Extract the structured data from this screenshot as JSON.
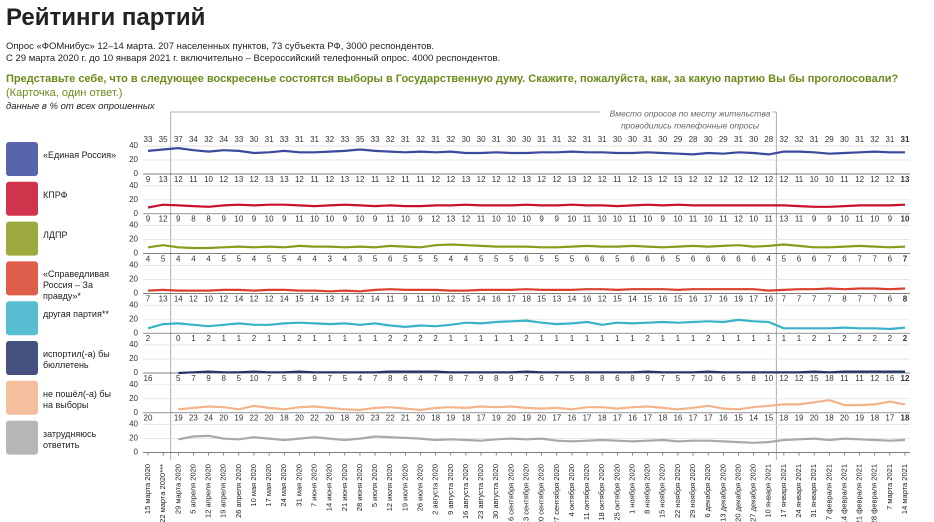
{
  "chart_data": {
    "type": "line",
    "title": "Рейтинги партий",
    "subtitle": [
      "Опрос «ФОМнибус» 12–14 марта. 207 населенных пунктов, 73 субъекта РФ, 3000 респондентов.",
      "С 29 марта 2020 г. до 10 января 2021 г. включительно – Всероссийский телефонный опрос. 4000 респондентов."
    ],
    "question": "Представьте себе, что в следующее воскресенье состоятся выборы в Государственную думу. Скажите, пожалуйста, как, за какую партию Вы бы проголосовали?",
    "note": "(Карточка, один ответ.)",
    "units": "данные в % от всех опрошенных",
    "annotation": [
      "Вместо опросов по месту жительства",
      "проводились телефонные опросы"
    ],
    "categories": [
      "15 марта 2020",
      "22 марта 2020***",
      "29 марта 2020",
      "5 апреля 2020",
      "12 апреля 2020",
      "19 апреля 2020",
      "26 апреля 2020",
      "10 мая 2020",
      "17 мая 2020",
      "24 мая 2020",
      "31 мая 2020",
      "7 июня 2020",
      "14 июня 2020",
      "21 июня 2020",
      "28 июня 2020",
      "5 июля 2020",
      "12 июля 2020",
      "19 июля 2020",
      "26 июля 2020",
      "2 августа 2020",
      "9 августа 2020",
      "16 августа 2020",
      "23 августа 2020",
      "30 августа 2020",
      "6 сентября 2020",
      "13 сентября 2020",
      "20 сентября 2020",
      "27 сентября 2020",
      "4 октября 2020",
      "11 октября 2020",
      "18 октября 2020",
      "25 октября 2020",
      "1 ноября 2020",
      "8 ноября 2020",
      "15 ноября 2020",
      "22 ноября 2020",
      "29 ноября 2020",
      "6 декабря 2020",
      "13 декабря 2020",
      "20 декабря 2020",
      "27 декабря 2020",
      "10 января 2021",
      "17 января 2021",
      "24 января 2021",
      "31 января 2021",
      "7 февраля 2021",
      "14 февраля 2021",
      "21 февраля 2021",
      "28 февраля 2021",
      "7 марта 2021",
      "14 марта 2021"
    ],
    "ylim": [
      0,
      40
    ],
    "yticks": [
      0,
      20,
      40
    ],
    "grid": true,
    "series": [
      {
        "name": "«Единая Россия»",
        "color": "#3b4a9c",
        "values": [
          33,
          35,
          37,
          34,
          32,
          34,
          33,
          30,
          31,
          33,
          31,
          31,
          32,
          33,
          35,
          33,
          32,
          31,
          32,
          31,
          32,
          30,
          30,
          31,
          30,
          30,
          31,
          31,
          32,
          31,
          31,
          30,
          30,
          31,
          30,
          29,
          28,
          30,
          29,
          31,
          30,
          28,
          32,
          32,
          31,
          29,
          30,
          31,
          32,
          31,
          31
        ]
      },
      {
        "name": "КПРФ",
        "color": "#c8102e",
        "values": [
          9,
          13,
          12,
          11,
          10,
          12,
          13,
          12,
          13,
          13,
          12,
          11,
          12,
          13,
          12,
          11,
          12,
          11,
          11,
          12,
          12,
          13,
          12,
          12,
          12,
          13,
          12,
          12,
          13,
          12,
          12,
          11,
          12,
          13,
          12,
          13,
          12,
          12,
          12,
          12,
          12,
          12,
          12,
          11,
          10,
          10,
          11,
          12,
          12,
          12,
          13
        ]
      },
      {
        "name": "ЛДПР",
        "color": "#8c9a1c",
        "values": [
          9,
          12,
          9,
          8,
          8,
          9,
          10,
          9,
          10,
          9,
          11,
          10,
          10,
          9,
          10,
          9,
          11,
          10,
          9,
          12,
          13,
          12,
          11,
          10,
          10,
          10,
          9,
          9,
          10,
          11,
          10,
          10,
          11,
          10,
          9,
          10,
          11,
          10,
          11,
          12,
          10,
          11,
          13,
          11,
          9,
          9,
          10,
          11,
          10,
          9,
          10
        ]
      },
      {
        "name": "«Справедливая Россия – За правду»*",
        "color": "#d9412c",
        "values": [
          4,
          5,
          4,
          4,
          4,
          5,
          5,
          4,
          5,
          5,
          4,
          4,
          3,
          4,
          3,
          5,
          6,
          5,
          5,
          5,
          4,
          4,
          5,
          5,
          5,
          6,
          5,
          5,
          5,
          6,
          6,
          5,
          6,
          6,
          6,
          5,
          6,
          6,
          6,
          6,
          6,
          4,
          5,
          6,
          6,
          7,
          6,
          7,
          7,
          6,
          7
        ]
      },
      {
        "name": "другая партия**",
        "color": "#3ab2c9",
        "values": [
          7,
          13,
          14,
          12,
          10,
          12,
          14,
          12,
          12,
          14,
          15,
          14,
          13,
          14,
          12,
          14,
          11,
          9,
          11,
          10,
          12,
          15,
          14,
          16,
          17,
          18,
          15,
          13,
          14,
          16,
          12,
          15,
          14,
          15,
          16,
          15,
          16,
          17,
          16,
          19,
          17,
          16,
          7,
          7,
          7,
          7,
          8,
          7,
          7,
          6,
          8
        ]
      },
      {
        "name": "испортил(-а) бы бюллетень",
        "color": "#24336a",
        "values": [
          2,
          null,
          0,
          1,
          2,
          1,
          1,
          2,
          1,
          1,
          2,
          1,
          1,
          1,
          1,
          1,
          2,
          2,
          2,
          2,
          1,
          1,
          1,
          1,
          1,
          2,
          1,
          1,
          1,
          1,
          1,
          1,
          1,
          2,
          1,
          1,
          1,
          2,
          1,
          1,
          1,
          1,
          1,
          1,
          2,
          1,
          2,
          2,
          2,
          2,
          2
        ]
      },
      {
        "name": "не пошёл(-а) бы на выборы",
        "color": "#f3b48c",
        "values": [
          16,
          null,
          5,
          7,
          9,
          8,
          5,
          10,
          7,
          5,
          8,
          9,
          7,
          5,
          4,
          7,
          8,
          6,
          4,
          7,
          8,
          7,
          9,
          8,
          9,
          7,
          6,
          7,
          5,
          8,
          8,
          6,
          8,
          9,
          7,
          5,
          7,
          10,
          6,
          5,
          8,
          10,
          12,
          12,
          15,
          18,
          11,
          11,
          12,
          16,
          12
        ]
      },
      {
        "name": "затрудняюсь ответить",
        "color": "#a7a9ac",
        "values": [
          20,
          null,
          19,
          23,
          24,
          20,
          19,
          22,
          20,
          18,
          20,
          22,
          20,
          18,
          20,
          23,
          22,
          21,
          20,
          18,
          19,
          18,
          17,
          19,
          20,
          19,
          20,
          17,
          16,
          17,
          18,
          17,
          16,
          17,
          18,
          16,
          17,
          17,
          16,
          15,
          14,
          15,
          18,
          19,
          20,
          18,
          20,
          19,
          18,
          17,
          18
        ]
      }
    ]
  }
}
